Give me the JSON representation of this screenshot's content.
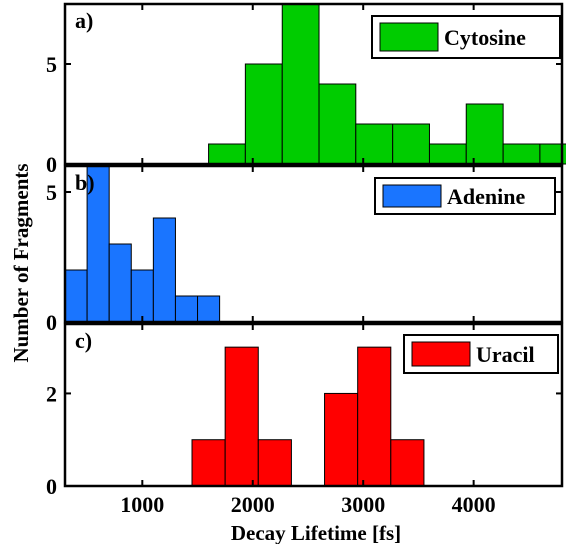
{
  "chart_data": [
    {
      "type": "bar",
      "panel_label": "a)",
      "legend": "Cytosine",
      "color": "#00cc00",
      "bin_edges": [
        1600,
        1933,
        2267,
        2600,
        2933,
        3267,
        3600,
        3933,
        4267,
        4600,
        4933
      ],
      "values": [
        1,
        5,
        8,
        4,
        2,
        2,
        1,
        3,
        1,
        1
      ],
      "xlim": [
        300,
        4800
      ],
      "ylim": [
        0,
        8
      ],
      "yticks": [
        "0",
        "5"
      ],
      "legend_position": "top-right"
    },
    {
      "type": "bar",
      "panel_label": "b)",
      "legend": "Adenine",
      "color": "#1a75ff",
      "bin_edges": [
        300,
        500,
        700,
        900,
        1100,
        1300,
        1500,
        1700
      ],
      "values": [
        2,
        6,
        3,
        2,
        4,
        1,
        1
      ],
      "xlim": [
        300,
        4800
      ],
      "ylim": [
        0,
        6
      ],
      "yticks": [
        "0",
        "5"
      ],
      "legend_position": "top-right"
    },
    {
      "type": "bar",
      "panel_label": "c)",
      "legend": "Uracil",
      "color": "#ff0000",
      "bin_edges": [
        1450,
        1750,
        2050,
        2350,
        2650,
        2950,
        3250,
        3550
      ],
      "values": [
        1,
        3,
        1,
        0,
        2,
        3,
        1
      ],
      "xlim": [
        300,
        4800
      ],
      "ylim": [
        0,
        3.5
      ],
      "yticks": [
        "0",
        "2"
      ],
      "legend_position": "top-right"
    }
  ],
  "axes": {
    "xlabel": "Decay Lifetime [fs]",
    "ylabel": "Number of Fragments",
    "xticks": [
      "1000",
      "2000",
      "3000",
      "4000"
    ]
  }
}
